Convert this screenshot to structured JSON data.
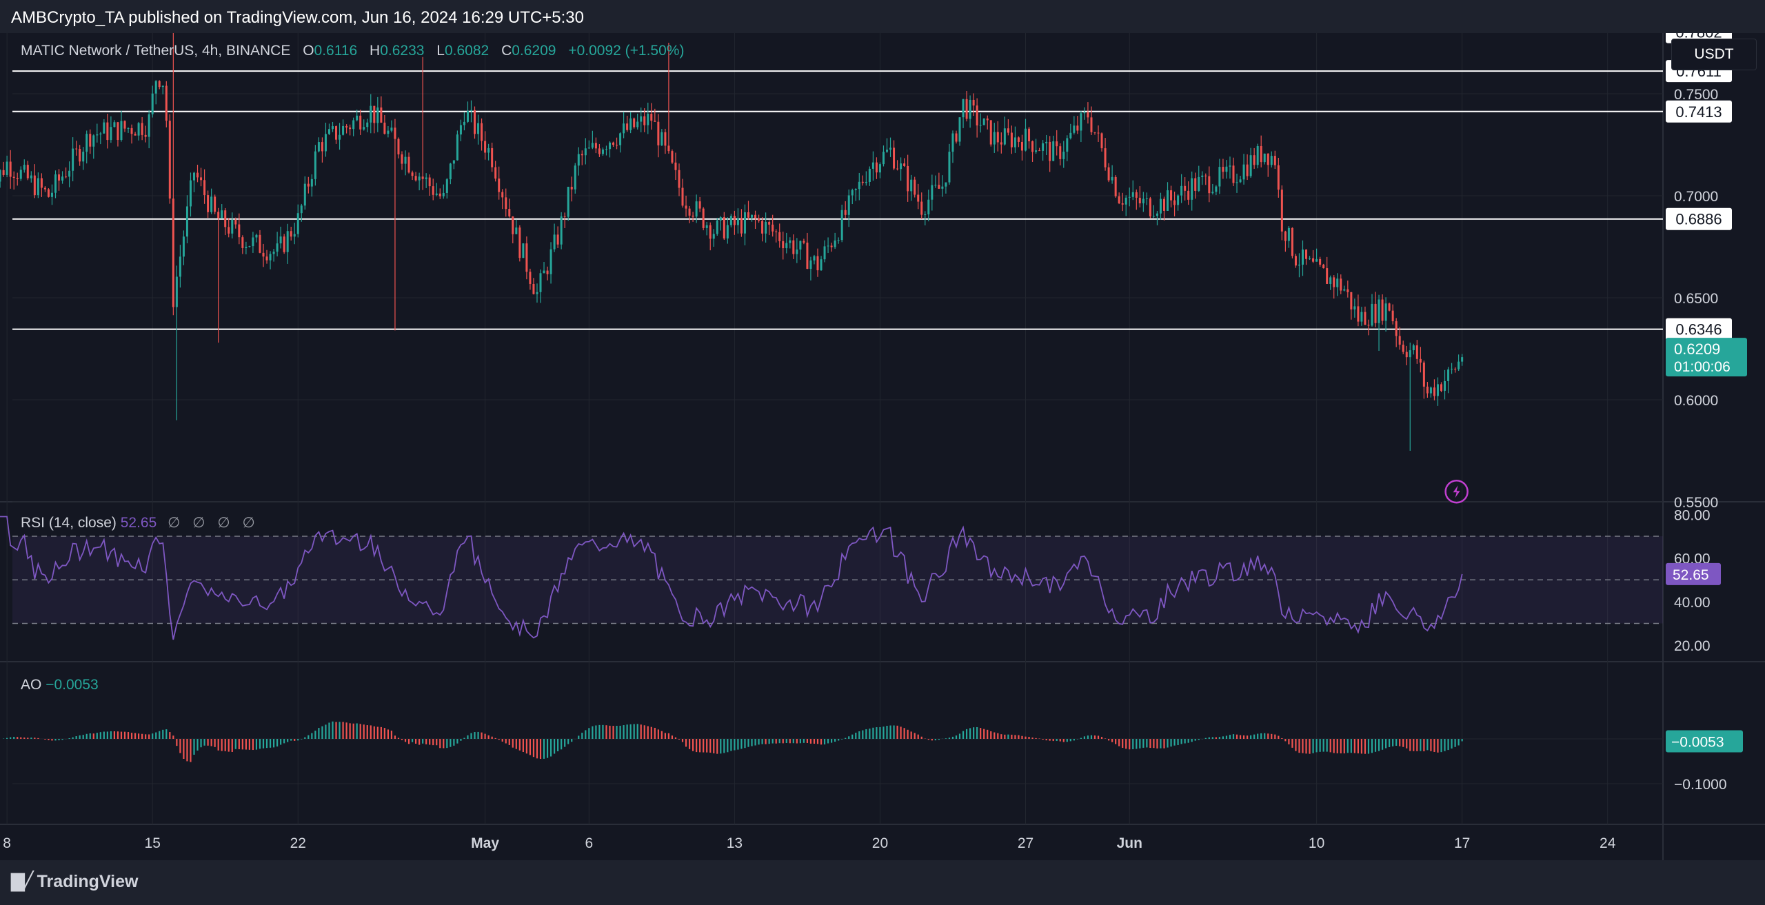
{
  "header": {
    "published": "AMBCrypto_TA published on TradingView.com, Jun 16, 2024 16:29 UTC+5:30"
  },
  "legend": {
    "symbol": "MATIC Network / TetherUS, 4h, BINANCE",
    "o_label": "O",
    "o": "0.6116",
    "h_label": "H",
    "h": "0.6233",
    "l_label": "L",
    "l": "0.6082",
    "c_label": "C",
    "c": "0.6209",
    "change": "+0.0092 (+1.50%)"
  },
  "currency_button": "USDT",
  "rsi_legend": {
    "label": "RSI (14, close)",
    "value": "52.65",
    "icons": "∅ ∅ ∅ ∅"
  },
  "ao_legend": {
    "label": "AO",
    "value": "−0.0053"
  },
  "footer": {
    "brand": "TradingView"
  },
  "colors": {
    "up": "#26a69a",
    "down": "#ef5350",
    "rsi": "#7e57c2",
    "bg": "#141722",
    "grid": "#22262f"
  },
  "chart_data": [
    {
      "type": "candlestick",
      "title": "MATIC Network / TetherUS, 4h, BINANCE",
      "x_ticks": [
        "8",
        "15",
        "22",
        "May",
        "6",
        "13",
        "20",
        "27",
        "Jun",
        "10",
        "17",
        "24"
      ],
      "y_ticks": [
        "0.5500",
        "0.6000",
        "0.6500",
        "0.7000",
        "0.7500"
      ],
      "ylim": [
        0.55,
        0.775
      ],
      "horizontal_levels": [
        "0.7802",
        "0.7611",
        "0.7413",
        "0.6886",
        "0.6346"
      ],
      "last_price": "0.6209",
      "countdown": "01:00:06",
      "key_points": [
        {
          "x": "Apr 12",
          "close": 0.76
        },
        {
          "x": "Apr 13",
          "low": 0.59
        },
        {
          "x": "Apr 24",
          "close": 0.76
        },
        {
          "x": "Apr 30",
          "low": 0.632
        },
        {
          "x": "May 6",
          "high": 0.775
        },
        {
          "x": "May 15",
          "close": 0.648
        },
        {
          "x": "May 21",
          "close": 0.752
        },
        {
          "x": "Jun 6",
          "close": 0.74
        },
        {
          "x": "Jun 8",
          "close": 0.67
        },
        {
          "x": "Jun 14",
          "low": 0.572
        },
        {
          "x": "Jun 16",
          "close": 0.6209
        }
      ]
    },
    {
      "type": "line",
      "title": "RSI (14, close)",
      "y_ticks": [
        "20.00",
        "40.00",
        "60.00",
        "80.00"
      ],
      "ylim": [
        15,
        82
      ],
      "levels": [
        70,
        50,
        30
      ],
      "last_value": "52.65"
    },
    {
      "type": "bar",
      "title": "AO",
      "y_ticks": [
        "−0.1000"
      ],
      "last_value": "−0.0053"
    }
  ]
}
